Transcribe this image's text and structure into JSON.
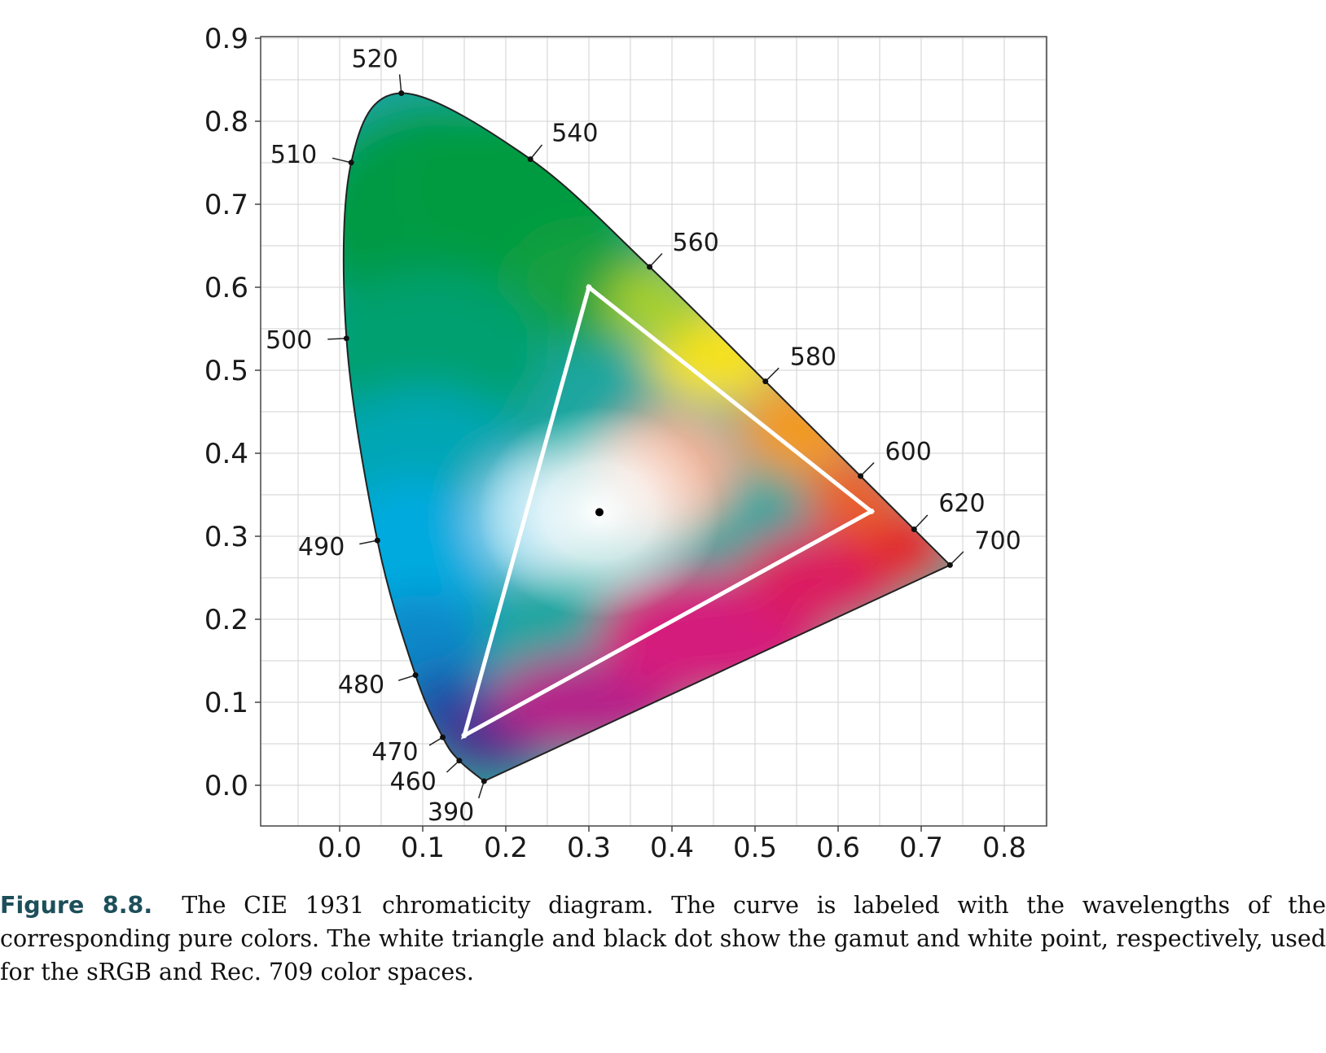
{
  "chart_data": {
    "type": "scatter",
    "xlim": [
      -0.1,
      0.85
    ],
    "ylim": [
      -0.05,
      0.9
    ],
    "x_ticks": [
      "0.0",
      "0.1",
      "0.2",
      "0.3",
      "0.4",
      "0.5",
      "0.6",
      "0.7",
      "0.8"
    ],
    "y_ticks": [
      "0.0",
      "0.1",
      "0.2",
      "0.3",
      "0.4",
      "0.5",
      "0.6",
      "0.7",
      "0.8",
      "0.9"
    ],
    "grid": true,
    "spectral_locus": [
      {
        "nm": "390",
        "x": 0.1738,
        "y": 0.0049
      },
      {
        "nm": "460",
        "x": 0.144,
        "y": 0.0297
      },
      {
        "nm": "470",
        "x": 0.1241,
        "y": 0.0578
      },
      {
        "nm": "480",
        "x": 0.0913,
        "y": 0.1327
      },
      {
        "nm": "490",
        "x": 0.0454,
        "y": 0.295
      },
      {
        "nm": "500",
        "x": 0.0082,
        "y": 0.5384
      },
      {
        "nm": "510",
        "x": 0.0139,
        "y": 0.7502
      },
      {
        "nm": "520",
        "x": 0.0743,
        "y": 0.8338
      },
      {
        "nm": "540",
        "x": 0.2296,
        "y": 0.7543
      },
      {
        "nm": "560",
        "x": 0.3731,
        "y": 0.6245
      },
      {
        "nm": "580",
        "x": 0.5125,
        "y": 0.4866
      },
      {
        "nm": "600",
        "x": 0.627,
        "y": 0.3725
      },
      {
        "nm": "620",
        "x": 0.6915,
        "y": 0.3083
      },
      {
        "nm": "700",
        "x": 0.7347,
        "y": 0.2653
      }
    ],
    "gamut_triangle": [
      {
        "x": 0.64,
        "y": 0.33
      },
      {
        "x": 0.3,
        "y": 0.6
      },
      {
        "x": 0.15,
        "y": 0.06
      }
    ],
    "white_point": {
      "x": 0.3127,
      "y": 0.329
    }
  },
  "caption": {
    "label": "Figure 8.8.",
    "text": "The CIE 1931 chromaticity diagram. The curve is labeled with the wavelengths of the corresponding pure colors. The white triangle and black dot show the gamut and white point, respectively, used for the sRGB and Rec. 709 color spaces."
  }
}
